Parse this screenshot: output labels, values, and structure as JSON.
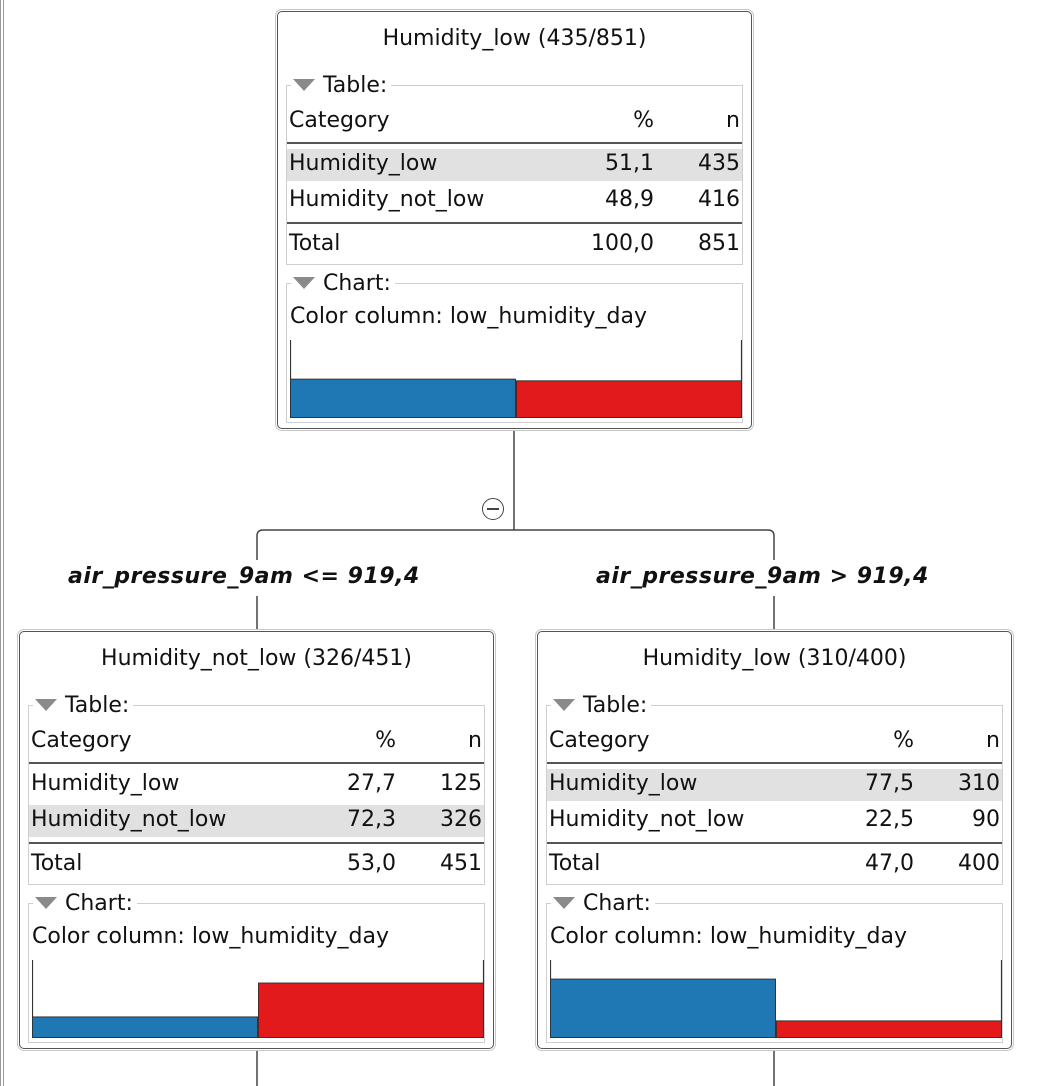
{
  "colors": {
    "class_a": "#1f77b4",
    "class_b": "#e31a1c"
  },
  "nodes": [
    {
      "title": "Humidity_low (435/851)",
      "table_label": "Table:",
      "headers": {
        "category": "Category",
        "pct": "%",
        "n": "n"
      },
      "rows": [
        {
          "category": "Humidity_low",
          "pct": "51,1",
          "n": "435",
          "highlighted": true
        },
        {
          "category": "Humidity_not_low",
          "pct": "48,9",
          "n": "416",
          "highlighted": false
        }
      ],
      "total": {
        "label": "Total",
        "pct": "100,0",
        "n": "851"
      },
      "chart_label": "Chart:",
      "color_column": "Color column: low_humidity_day"
    },
    {
      "title": "Humidity_not_low (326/451)",
      "table_label": "Table:",
      "headers": {
        "category": "Category",
        "pct": "%",
        "n": "n"
      },
      "rows": [
        {
          "category": "Humidity_low",
          "pct": "27,7",
          "n": "125",
          "highlighted": false
        },
        {
          "category": "Humidity_not_low",
          "pct": "72,3",
          "n": "326",
          "highlighted": true
        }
      ],
      "total": {
        "label": "Total",
        "pct": "53,0",
        "n": "451"
      },
      "chart_label": "Chart:",
      "color_column": "Color column: low_humidity_day"
    },
    {
      "title": "Humidity_low (310/400)",
      "table_label": "Table:",
      "headers": {
        "category": "Category",
        "pct": "%",
        "n": "n"
      },
      "rows": [
        {
          "category": "Humidity_low",
          "pct": "77,5",
          "n": "310",
          "highlighted": true
        },
        {
          "category": "Humidity_not_low",
          "pct": "22,5",
          "n": "90",
          "highlighted": false
        }
      ],
      "total": {
        "label": "Total",
        "pct": "47,0",
        "n": "400"
      },
      "chart_label": "Chart:",
      "color_column": "Color column: low_humidity_day"
    }
  ],
  "conditions": {
    "left": "air_pressure_9am <= 919,4",
    "right": "air_pressure_9am > 919,4"
  }
}
